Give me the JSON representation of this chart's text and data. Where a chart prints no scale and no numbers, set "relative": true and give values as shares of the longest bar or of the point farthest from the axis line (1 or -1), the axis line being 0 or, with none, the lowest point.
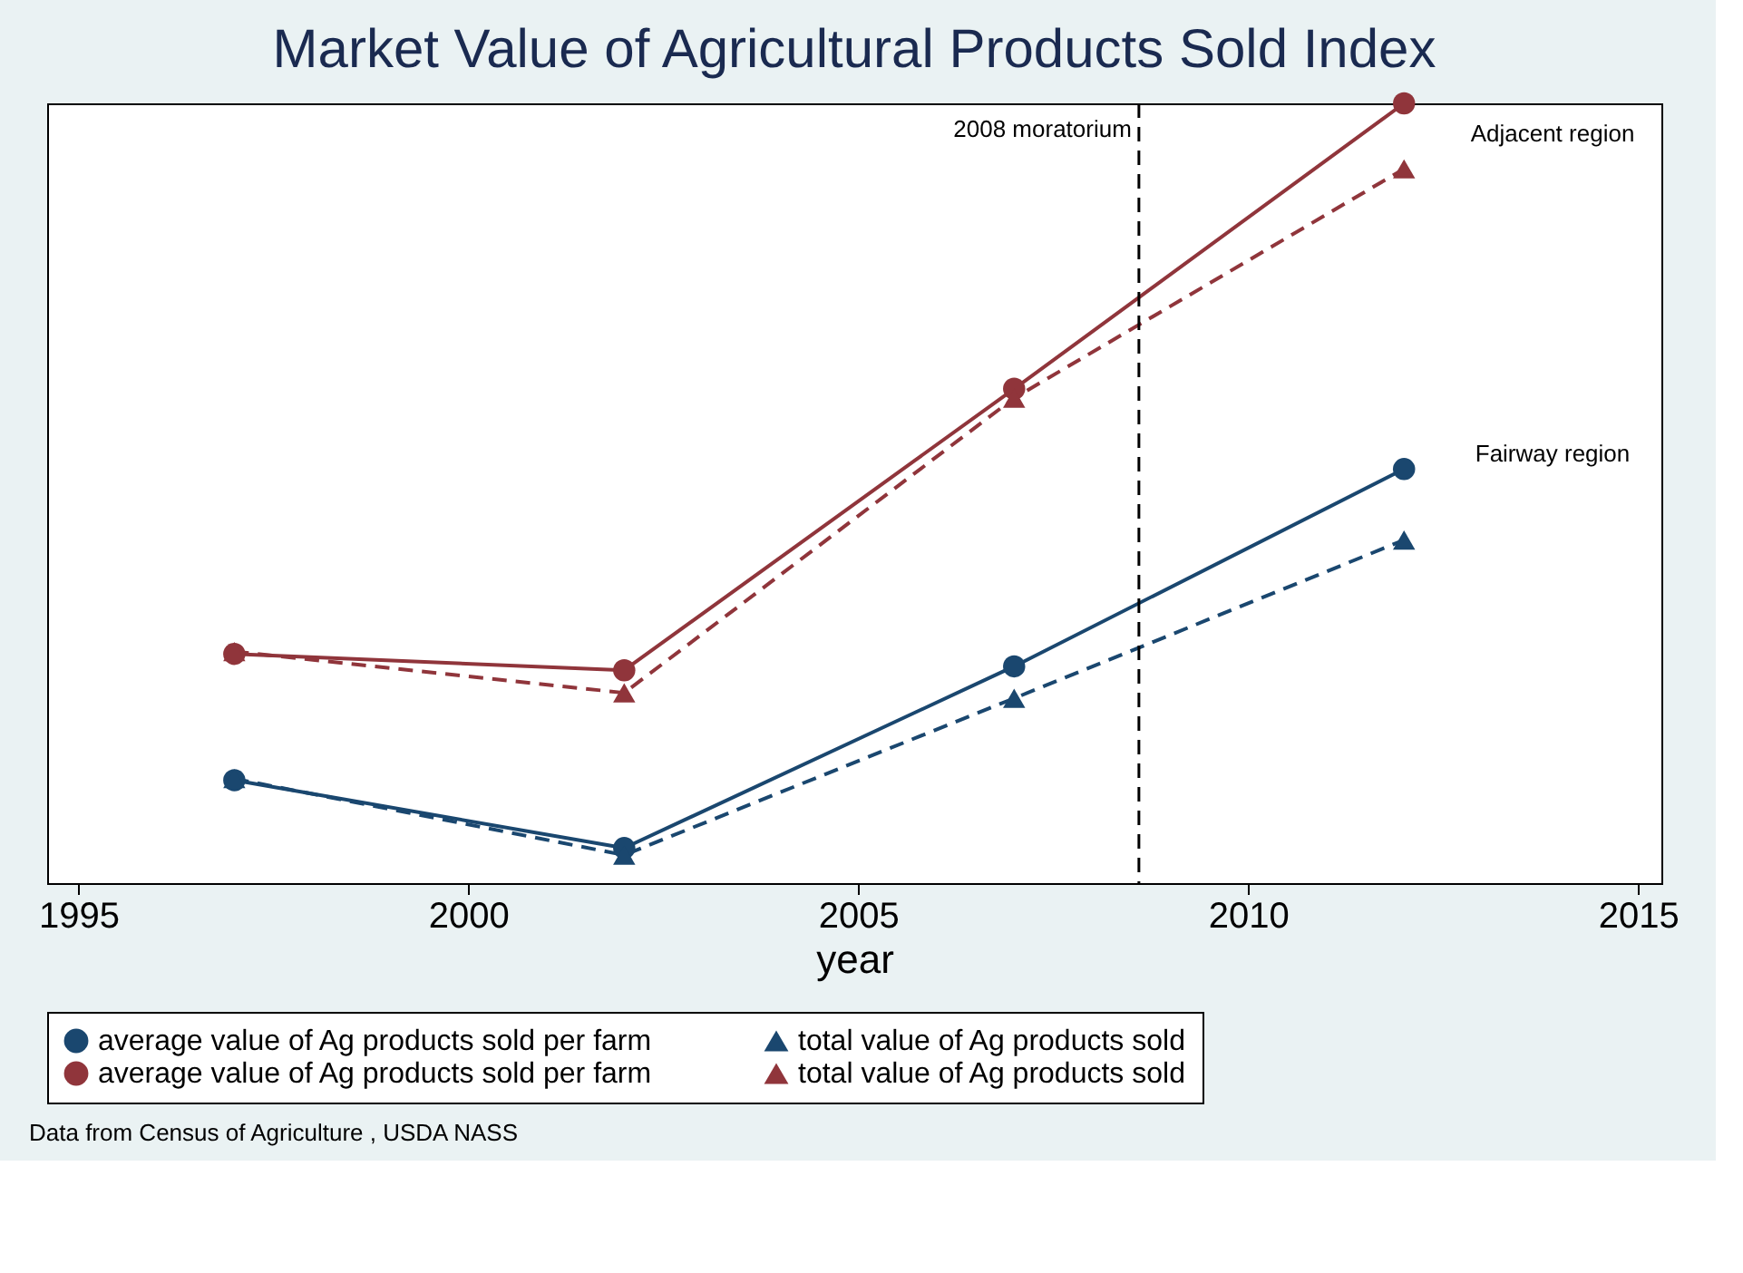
{
  "chart_data": {
    "type": "line",
    "title": "Market Value of Agricultural Products Sold Index",
    "xlabel": "year",
    "relative": true,
    "x": [
      1997,
      2002,
      2007,
      2012
    ],
    "xlim": [
      1994.6,
      2015.3
    ],
    "xticks": [
      1995,
      2000,
      2005,
      2010,
      2015
    ],
    "series": [
      {
        "name": "average value of Ag products sold per farm",
        "color": "#1a476f",
        "marker": "circle",
        "line_style": "solid",
        "values": [
          0.132,
          0.045,
          0.278,
          0.531
        ]
      },
      {
        "name": "total value of Ag products sold",
        "color": "#1a476f",
        "marker": "triangle",
        "line_style": "dashed",
        "values": [
          0.134,
          0.036,
          0.237,
          0.44
        ]
      },
      {
        "name": "average value of Ag products sold per farm",
        "color": "#90353b",
        "marker": "circle",
        "line_style": "solid",
        "values": [
          0.294,
          0.273,
          0.634,
          1.0
        ]
      },
      {
        "name": "total value of Ag products sold",
        "color": "#90353b",
        "marker": "triangle",
        "line_style": "dashed",
        "values": [
          0.297,
          0.244,
          0.622,
          0.916
        ]
      }
    ],
    "ref_lines": [
      {
        "axis": "x",
        "value": 2008.6,
        "label": "2008 moratorium",
        "color": "#000000",
        "line_style": "dashed"
      }
    ],
    "annotations": [
      "Adjacent region",
      "Fairway region",
      "Data from Census of Agriculture , USDA NASS"
    ],
    "legend": "bottom",
    "grid": false
  }
}
